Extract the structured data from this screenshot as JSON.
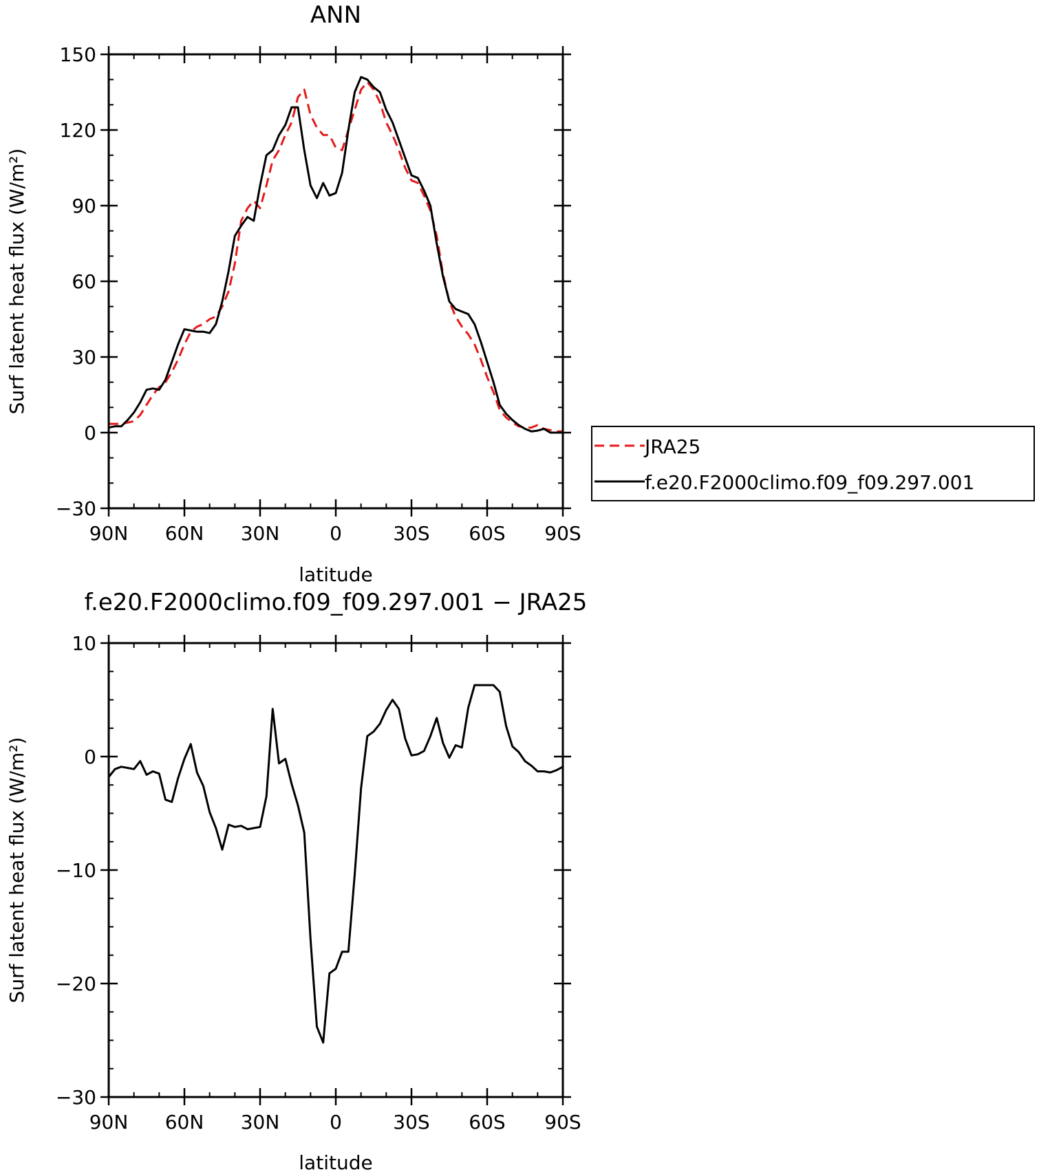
{
  "chart_data": [
    {
      "type": "line",
      "title": "ANN",
      "xlabel": "latitude",
      "ylabel": "Surf latent heat flux (W/m²)",
      "xlim": [
        90,
        -90
      ],
      "ylim": [
        -30,
        150
      ],
      "x_ticks": [
        {
          "value": 90,
          "label": "90N"
        },
        {
          "value": 60,
          "label": "60N"
        },
        {
          "value": 30,
          "label": "30N"
        },
        {
          "value": 0,
          "label": "0"
        },
        {
          "value": -30,
          "label": "30S"
        },
        {
          "value": -60,
          "label": "60S"
        },
        {
          "value": -90,
          "label": "90S"
        }
      ],
      "y_ticks": [
        {
          "value": -30,
          "label": "−30"
        },
        {
          "value": 0,
          "label": "0"
        },
        {
          "value": 30,
          "label": "30"
        },
        {
          "value": 60,
          "label": "60"
        },
        {
          "value": 90,
          "label": "90"
        },
        {
          "value": 120,
          "label": "120"
        },
        {
          "value": 150,
          "label": "150"
        }
      ],
      "legend_position": "right",
      "series": [
        {
          "name": "JRA25",
          "color": "#e41a1a",
          "dash": "dashed",
          "x": [
            90,
            85,
            80,
            77.5,
            75,
            72.5,
            70,
            67.5,
            65,
            62.5,
            60,
            57.5,
            55,
            52.5,
            50,
            47.5,
            45,
            42.5,
            40,
            37.5,
            35,
            32.5,
            30,
            27.5,
            25,
            22.5,
            20,
            17.5,
            15,
            12.5,
            10,
            7.5,
            5,
            2.5,
            0,
            -2.5,
            -5,
            -7.5,
            -10,
            -12.5,
            -15,
            -17.5,
            -20,
            -22.5,
            -25,
            -27.5,
            -30,
            -32.5,
            -35,
            -37.5,
            -40,
            -42.5,
            -45,
            -47.5,
            -50,
            -52.5,
            -55,
            -57.5,
            -60,
            -62.5,
            -65,
            -67.5,
            -70,
            -72.5,
            -75,
            -77.5,
            -80,
            -82.5,
            -85,
            -87.5,
            -90
          ],
          "y": [
            3.5,
            3.5,
            4.5,
            7,
            11,
            15,
            18,
            20,
            24,
            29,
            35,
            40,
            42,
            43,
            45,
            46,
            50,
            56,
            67,
            84,
            89,
            92,
            89,
            98,
            108,
            112,
            118,
            123,
            133,
            136,
            126,
            121,
            118,
            118,
            113,
            112,
            120,
            128,
            136,
            139,
            136,
            131,
            123,
            118,
            112,
            105,
            100,
            99,
            94,
            88,
            78,
            63,
            52,
            46,
            42,
            39,
            35,
            29,
            22,
            16,
            9,
            6,
            4,
            2.5,
            2,
            2,
            3,
            1.5,
            1,
            0.5,
            0.5
          ]
        },
        {
          "name": "f.e20.F2000climo.f09_f09.297.001",
          "color": "#000000",
          "dash": "solid",
          "x": [
            90,
            87.5,
            85,
            82.5,
            80,
            77.5,
            75,
            72.5,
            70,
            67.5,
            65,
            62.5,
            60,
            57.5,
            55,
            52.5,
            50,
            47.5,
            45,
            42.5,
            40,
            37.5,
            35,
            32.5,
            30,
            27.5,
            25,
            22.5,
            20,
            17.5,
            15,
            12.5,
            10,
            7.5,
            5,
            2.5,
            0,
            -2.5,
            -5,
            -7.5,
            -10,
            -12.5,
            -15,
            -17.5,
            -20,
            -22.5,
            -25,
            -27.5,
            -30,
            -32.5,
            -35,
            -37.5,
            -40,
            -42.5,
            -45,
            -47.5,
            -50,
            -52.5,
            -55,
            -57.5,
            -60,
            -62.5,
            -65,
            -67.5,
            -70,
            -72.5,
            -75,
            -77.5,
            -80,
            -82.5,
            -85,
            -87.5,
            -90
          ],
          "y": [
            2,
            2.5,
            2.5,
            5,
            8,
            12,
            17,
            17.5,
            17,
            21,
            28,
            35,
            41,
            40.5,
            40,
            40,
            39.5,
            43,
            52,
            64,
            78,
            82,
            85.5,
            84,
            98,
            110,
            112,
            118,
            122,
            129,
            129,
            112,
            98,
            93,
            99,
            94,
            95,
            103,
            120,
            135,
            141,
            140,
            137,
            135,
            128,
            123,
            116,
            109,
            102,
            101,
            96,
            90,
            75,
            62,
            52,
            49,
            48,
            47,
            43,
            36,
            28,
            20,
            11,
            7.5,
            5,
            3,
            1.5,
            0.5,
            0.8,
            1.5,
            0,
            0,
            0
          ]
        }
      ]
    },
    {
      "type": "line",
      "title": "f.e20.F2000climo.f09_f09.297.001 − JRA25",
      "xlabel": "latitude",
      "ylabel": "Surf latent heat flux (W/m²)",
      "xlim": [
        90,
        -90
      ],
      "ylim": [
        -30,
        10
      ],
      "x_ticks": [
        {
          "value": 90,
          "label": "90N"
        },
        {
          "value": 60,
          "label": "60N"
        },
        {
          "value": 30,
          "label": "30N"
        },
        {
          "value": 0,
          "label": "0"
        },
        {
          "value": -30,
          "label": "30S"
        },
        {
          "value": -60,
          "label": "60S"
        },
        {
          "value": -90,
          "label": "90S"
        }
      ],
      "y_ticks": [
        {
          "value": -30,
          "label": "−30"
        },
        {
          "value": -20,
          "label": "−20"
        },
        {
          "value": -10,
          "label": "−10"
        },
        {
          "value": 0,
          "label": "0"
        },
        {
          "value": 10,
          "label": "10"
        }
      ],
      "series": [
        {
          "color": "#000000",
          "dash": "solid",
          "x": [
            90,
            87.5,
            85,
            82.5,
            80,
            77.5,
            75,
            72.5,
            70,
            67.5,
            65,
            62.5,
            60,
            57.5,
            55,
            52.5,
            50,
            47.5,
            45,
            42.5,
            40,
            37.5,
            35,
            32.5,
            30,
            27.5,
            25,
            22.5,
            20,
            17.5,
            15,
            12.5,
            10,
            7.5,
            5,
            2.5,
            0,
            -2.5,
            -5,
            -7.5,
            -10,
            -12.5,
            -15,
            -17.5,
            -20,
            -22.5,
            -25,
            -27.5,
            -30,
            -32.5,
            -35,
            -37.5,
            -40,
            -42.5,
            -45,
            -47.5,
            -50,
            -52.5,
            -55,
            -57.5,
            -60,
            -62.5,
            -65,
            -67.5,
            -70,
            -72.5,
            -75,
            -77.5,
            -80,
            -82.5,
            -85,
            -87.5,
            -90
          ],
          "y": [
            -1.8,
            -1.1,
            -0.9,
            -1.0,
            -1.1,
            -0.4,
            -1.6,
            -1.3,
            -1.5,
            -3.8,
            -4.0,
            -1.9,
            -0.2,
            1.1,
            -1.4,
            -2.6,
            -4.9,
            -6.3,
            -8.2,
            -6.0,
            -6.2,
            -6.1,
            -6.4,
            -6.3,
            -6.2,
            -3.5,
            4.2,
            -0.6,
            -0.2,
            -2.4,
            -4.3,
            -6.7,
            -16.1,
            -23.8,
            -25.2,
            -19.1,
            -18.7,
            -17.2,
            -17.2,
            -10.4,
            -2.8,
            1.8,
            2.2,
            2.9,
            4.1,
            5.0,
            4.2,
            1.6,
            0.1,
            0.2,
            0.5,
            1.8,
            3.4,
            1.2,
            -0.1,
            1.0,
            0.8,
            4.3,
            6.3,
            6.3,
            6.3,
            6.3,
            5.7,
            2.7,
            0.9,
            0.4,
            -0.4,
            -0.8,
            -1.3,
            -1.3,
            -1.4,
            -1.2,
            -0.9
          ]
        }
      ]
    }
  ]
}
